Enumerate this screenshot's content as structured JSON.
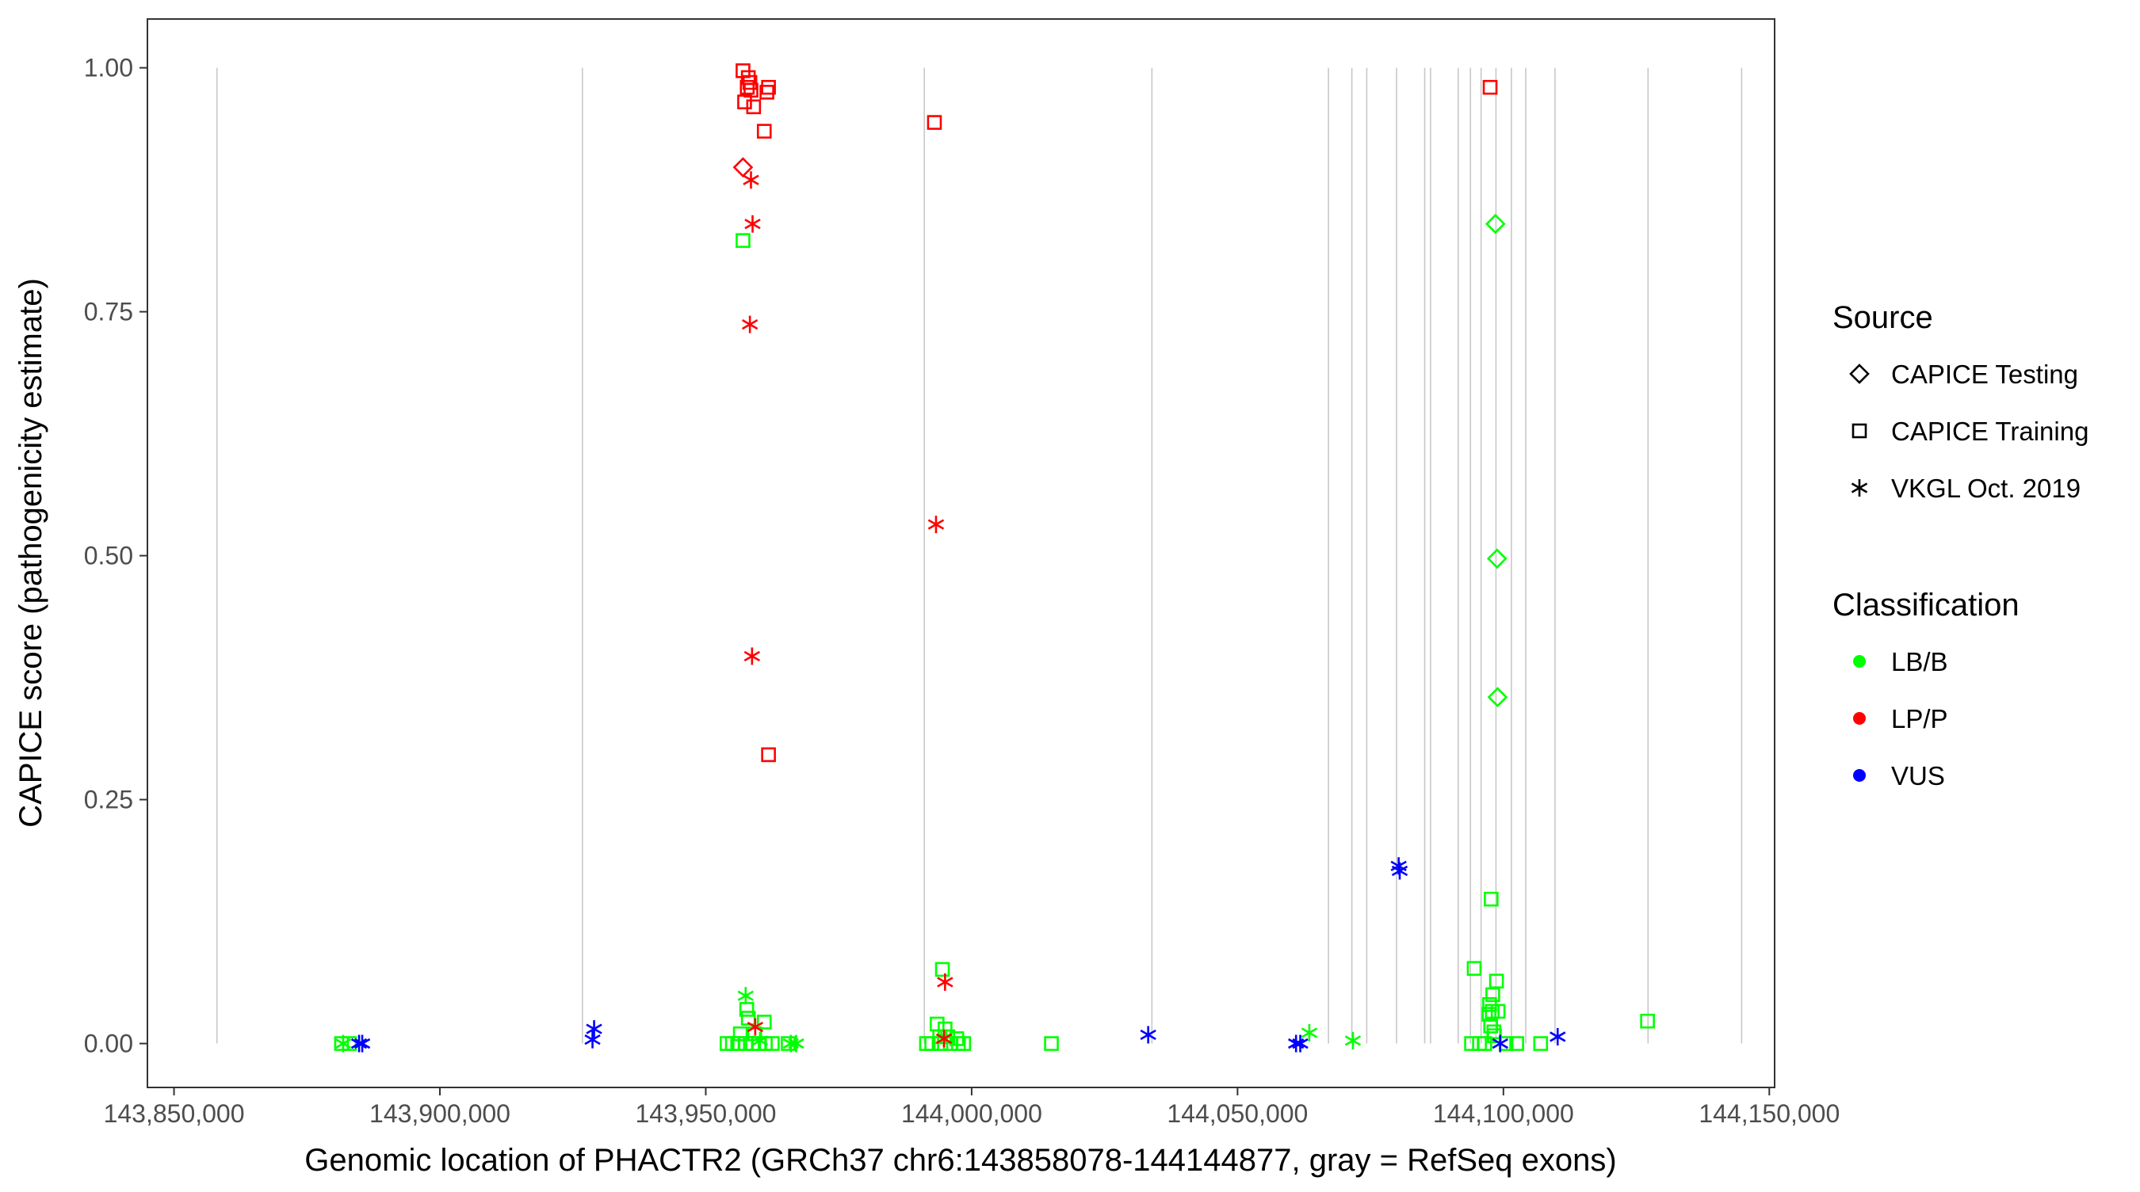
{
  "chart_data": {
    "type": "scatter",
    "xlabel": "Genomic location of PHACTR2 (GRCh37 chr6:143858078-144144877, gray = RefSeq exons)",
    "ylabel": "CAPICE score (pathogenicity estimate)",
    "xlim": [
      143845000,
      144151000
    ],
    "ylim": [
      -0.045,
      1.05
    ],
    "x_ticks": [
      143850000,
      143900000,
      143950000,
      144000000,
      144050000,
      144100000,
      144150000
    ],
    "x_tick_labels": [
      "143,850,000",
      "143,900,000",
      "143,950,000",
      "144,000,000",
      "144,050,000",
      "144,100,000",
      "144,150,000"
    ],
    "y_ticks": [
      0,
      0.25,
      0.5,
      0.75,
      1.0
    ],
    "y_tick_labels": [
      "0.00",
      "0.25",
      "0.50",
      "0.75",
      "1.00"
    ],
    "grid": false,
    "exon_positions": [
      143858078,
      143926800,
      143991100,
      144033900,
      144067100,
      144071500,
      144074300,
      144079900,
      144085200,
      144086300,
      144091500,
      144093800,
      144095800,
      144098600,
      144101500,
      144104200,
      144109700,
      144127200,
      144144800
    ],
    "legend": {
      "position": "right",
      "source_title": "Source",
      "source_entries": [
        {
          "label": "CAPICE Testing",
          "shape": "diamond"
        },
        {
          "label": "CAPICE Training",
          "shape": "square"
        },
        {
          "label": "VKGL Oct. 2019",
          "shape": "asterisk"
        }
      ],
      "class_title": "Classification",
      "class_entries": [
        {
          "label": "LB/B",
          "color": "#00ff00"
        },
        {
          "label": "LP/P",
          "color": "#ff0000"
        },
        {
          "label": "VUS",
          "color": "#0000ff"
        }
      ]
    },
    "colors": {
      "LB/B": "#00ff00",
      "LP/P": "#ff0000",
      "VUS": "#0000ff"
    },
    "series": [
      {
        "source": "CAPICE Testing",
        "classification": "LP/P",
        "points": [
          [
            143957000,
            0.898
          ]
        ]
      },
      {
        "source": "CAPICE Testing",
        "classification": "LB/B",
        "points": [
          [
            144098500,
            0.84
          ],
          [
            144098800,
            0.497
          ],
          [
            144098900,
            0.355
          ]
        ]
      },
      {
        "source": "CAPICE Training",
        "classification": "LP/P",
        "points": [
          [
            143957000,
            0.997
          ],
          [
            143958000,
            0.99
          ],
          [
            143958300,
            0.985
          ],
          [
            143957800,
            0.98
          ],
          [
            143958500,
            0.977
          ],
          [
            143961800,
            0.98
          ],
          [
            143961500,
            0.975
          ],
          [
            143957300,
            0.965
          ],
          [
            143959000,
            0.96
          ],
          [
            143961000,
            0.935
          ],
          [
            143993000,
            0.944
          ],
          [
            144097500,
            0.98
          ],
          [
            143961800,
            0.296
          ]
        ]
      },
      {
        "source": "CAPICE Training",
        "classification": "LB/B",
        "points": [
          [
            143957000,
            0.823
          ],
          [
            144094500,
            0.077
          ],
          [
            143994500,
            0.076
          ],
          [
            144097700,
            0.148
          ],
          [
            144098700,
            0.064
          ],
          [
            144098000,
            0.05
          ],
          [
            144097400,
            0.04
          ],
          [
            144097900,
            0.033
          ],
          [
            144099000,
            0.033
          ],
          [
            144097300,
            0.03
          ],
          [
            143957700,
            0.035
          ],
          [
            143958000,
            0.026
          ],
          [
            143961000,
            0.022
          ],
          [
            143993500,
            0.02
          ],
          [
            143995000,
            0.015
          ],
          [
            144127100,
            0.023
          ],
          [
            144097600,
            0.018
          ],
          [
            144098200,
            0.012
          ],
          [
            143956500,
            0.01
          ],
          [
            143959200,
            0.01
          ],
          [
            144098300,
            0.008
          ],
          [
            143994000,
            0.007
          ],
          [
            143995500,
            0.007
          ],
          [
            143997200,
            0.005
          ],
          [
            143954000,
            0.0
          ],
          [
            143955000,
            0.0
          ],
          [
            143956000,
            0.0
          ],
          [
            143957500,
            0.0
          ],
          [
            143958800,
            0.0
          ],
          [
            143960000,
            0.0
          ],
          [
            143961200,
            0.0
          ],
          [
            143962500,
            0.0
          ],
          [
            143965500,
            0.0
          ],
          [
            143991500,
            0.0
          ],
          [
            143992500,
            0.0
          ],
          [
            143994200,
            0.0
          ],
          [
            143996000,
            0.0
          ],
          [
            143997500,
            0.0
          ],
          [
            143998500,
            0.0
          ],
          [
            144015000,
            0.0
          ],
          [
            144094000,
            0.0
          ],
          [
            144095500,
            0.0
          ],
          [
            144096500,
            0.0
          ],
          [
            144100500,
            0.0
          ],
          [
            144102500,
            0.0
          ],
          [
            144107000,
            0.0
          ],
          [
            143881500,
            0.0
          ],
          [
            143883000,
            0.0
          ]
        ]
      },
      {
        "source": "VKGL Oct. 2019",
        "classification": "LP/P",
        "points": [
          [
            143958500,
            0.885
          ],
          [
            143958800,
            0.84
          ],
          [
            143958300,
            0.737
          ],
          [
            143993300,
            0.532
          ],
          [
            143958700,
            0.397
          ],
          [
            143995000,
            0.063
          ],
          [
            143959300,
            0.017
          ],
          [
            143994800,
            0.005
          ]
        ]
      },
      {
        "source": "VKGL Oct. 2019",
        "classification": "LB/B",
        "points": [
          [
            143957500,
            0.049
          ],
          [
            144063500,
            0.011
          ],
          [
            144071700,
            0.003
          ],
          [
            143966000,
            0.0
          ],
          [
            143967000,
            0.0
          ],
          [
            143881800,
            0.0
          ],
          [
            143960200,
            0.003
          ]
        ]
      },
      {
        "source": "VKGL Oct. 2019",
        "classification": "VUS",
        "points": [
          [
            144080300,
            0.182
          ],
          [
            144080500,
            0.177
          ],
          [
            143929000,
            0.015
          ],
          [
            143928700,
            0.004
          ],
          [
            144033200,
            0.009
          ],
          [
            144110200,
            0.007
          ],
          [
            143884800,
            0.0
          ],
          [
            143885400,
            0.0
          ],
          [
            144061000,
            0.0
          ],
          [
            144061800,
            0.0
          ],
          [
            144099400,
            0.0
          ]
        ]
      }
    ]
  }
}
